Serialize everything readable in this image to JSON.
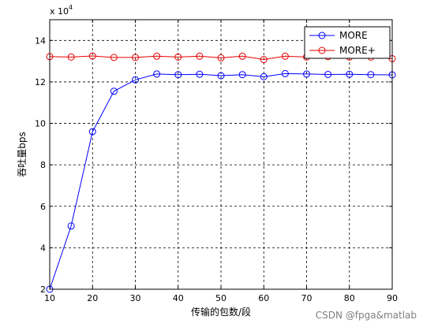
{
  "chart_data": {
    "type": "line",
    "xlabel": "传输的包数/段",
    "ylabel": "吞吐量bps",
    "y_exponent_label": "x 10",
    "y_exponent_power": "4",
    "xlim": [
      10,
      90
    ],
    "ylim": [
      2,
      15
    ],
    "xticks": [
      10,
      20,
      30,
      40,
      50,
      60,
      70,
      80,
      90
    ],
    "yticks": [
      2,
      4,
      6,
      8,
      10,
      12,
      14
    ],
    "grid": true,
    "legend_position": "top-right",
    "x": [
      10,
      15,
      20,
      25,
      30,
      35,
      40,
      45,
      50,
      55,
      60,
      65,
      70,
      75,
      80,
      85,
      90
    ],
    "series": [
      {
        "name": "MORE",
        "color": "#0000ff",
        "marker": "circle",
        "values": [
          2.0,
          5.05,
          9.6,
          11.55,
          12.1,
          12.38,
          12.35,
          12.37,
          12.3,
          12.35,
          12.25,
          12.4,
          12.38,
          12.36,
          12.37,
          12.35,
          12.34
        ]
      },
      {
        "name": "MORE+",
        "color": "#e60000",
        "marker": "circle",
        "values": [
          13.22,
          13.2,
          13.25,
          13.18,
          13.18,
          13.24,
          13.2,
          13.24,
          13.16,
          13.24,
          13.08,
          13.24,
          13.2,
          13.22,
          13.2,
          13.2,
          13.12
        ]
      }
    ]
  },
  "watermark": "CSDN @fpga&matlab"
}
